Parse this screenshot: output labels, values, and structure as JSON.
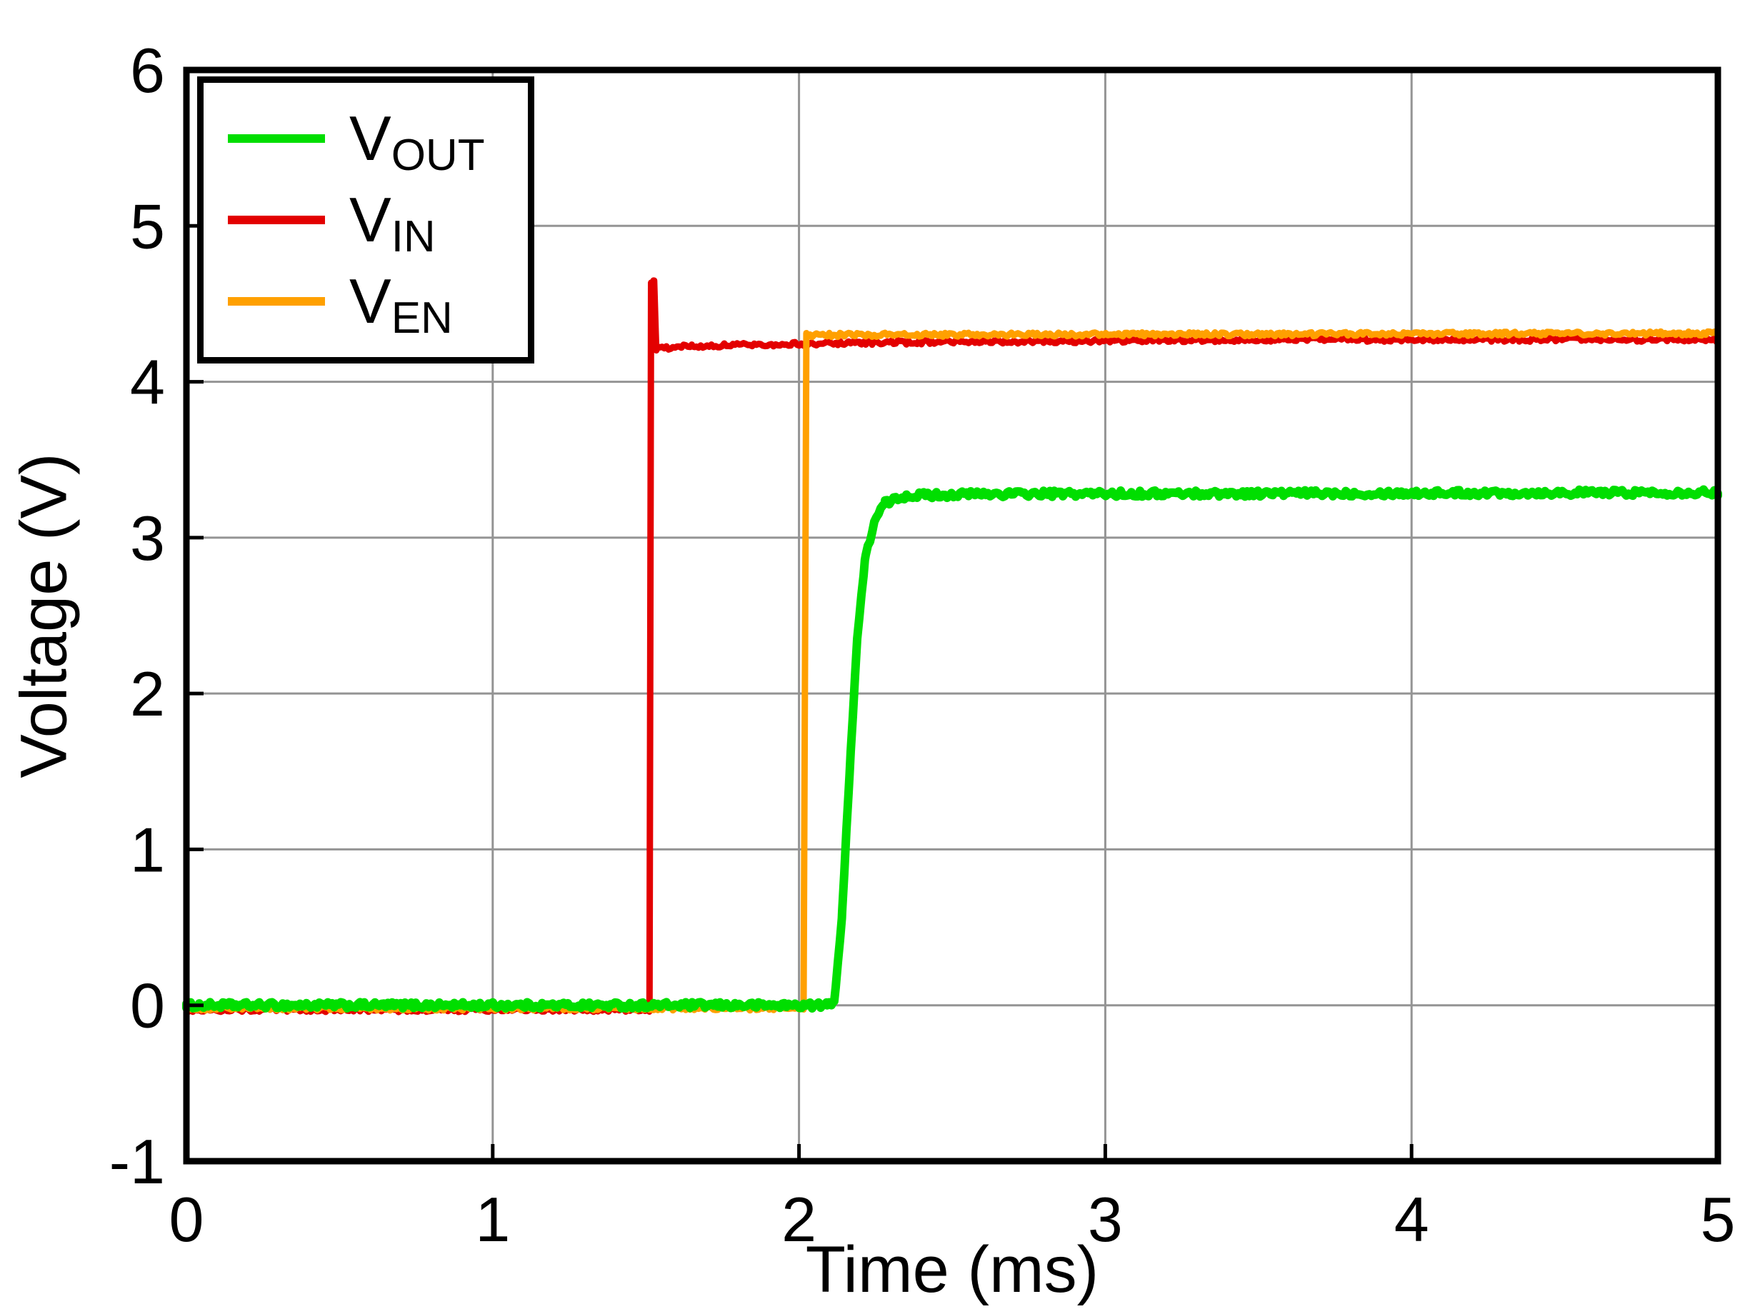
{
  "chart_data": {
    "type": "line",
    "title": "",
    "xlabel": "Time (ms)",
    "ylabel": "Voltage (V)",
    "xlim": [
      0,
      5
    ],
    "ylim": [
      -1,
      6
    ],
    "xticks": [
      0,
      1,
      2,
      3,
      4,
      5
    ],
    "yticks": [
      -1,
      0,
      1,
      2,
      3,
      4,
      5,
      6
    ],
    "grid": true,
    "grid_color": "#949494",
    "frame_color": "#000000",
    "background": "#ffffff",
    "legend_position": "top-left",
    "series": [
      {
        "name": "VOUT",
        "label_main": "V",
        "label_sub": "OUT",
        "color": "#00DE00",
        "width": 12,
        "noise": 0.02,
        "z": 3,
        "points": [
          [
            0,
            0.0
          ],
          [
            2.09,
            0.0
          ],
          [
            2.115,
            0.03
          ],
          [
            2.14,
            0.55
          ],
          [
            2.165,
            1.5
          ],
          [
            2.19,
            2.35
          ],
          [
            2.215,
            2.85
          ],
          [
            2.245,
            3.1
          ],
          [
            2.28,
            3.22
          ],
          [
            2.35,
            3.27
          ],
          [
            2.6,
            3.28
          ],
          [
            5,
            3.29
          ]
        ]
      },
      {
        "name": "VIN",
        "label_main": "V",
        "label_sub": "IN",
        "color": "#E30000",
        "width": 9,
        "noise": 0.013,
        "z": 1,
        "points": [
          [
            0,
            -0.03
          ],
          [
            1.512,
            -0.03
          ],
          [
            1.517,
            4.64
          ],
          [
            1.527,
            4.64
          ],
          [
            1.534,
            4.21
          ],
          [
            1.65,
            4.23
          ],
          [
            2.2,
            4.25
          ],
          [
            3.5,
            4.27
          ],
          [
            5,
            4.27
          ]
        ]
      },
      {
        "name": "VEN",
        "label_main": "V",
        "label_sub": "EN",
        "color": "#FFA000",
        "width": 9,
        "noise": 0.013,
        "z": 2,
        "points": [
          [
            0,
            -0.02
          ],
          [
            2.015,
            -0.02
          ],
          [
            2.024,
            4.3
          ],
          [
            5,
            4.31
          ]
        ]
      }
    ]
  }
}
